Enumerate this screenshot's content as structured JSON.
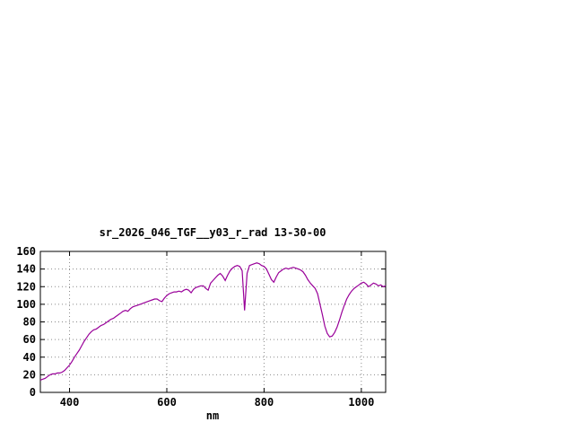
{
  "chart_data": {
    "type": "line",
    "title": "sr_2026_046_TGF__y03_r_rad 13-30-00",
    "xlabel": "nm",
    "ylabel": "",
    "xlim": [
      340,
      1050
    ],
    "ylim": [
      0,
      160
    ],
    "xticks": [
      400,
      600,
      800,
      1000
    ],
    "yticks": [
      0,
      20,
      40,
      60,
      80,
      100,
      120,
      140,
      160
    ],
    "grid": true,
    "legend": "none",
    "line_color": "#990099",
    "x": [
      340,
      345,
      350,
      355,
      360,
      365,
      370,
      375,
      380,
      385,
      390,
      395,
      400,
      405,
      410,
      415,
      420,
      425,
      430,
      435,
      440,
      445,
      450,
      455,
      460,
      465,
      470,
      475,
      480,
      485,
      490,
      495,
      500,
      505,
      510,
      515,
      520,
      525,
      530,
      535,
      540,
      545,
      550,
      555,
      560,
      565,
      570,
      575,
      580,
      585,
      590,
      595,
      600,
      605,
      610,
      615,
      620,
      625,
      630,
      635,
      640,
      645,
      650,
      655,
      660,
      665,
      670,
      675,
      680,
      685,
      690,
      695,
      700,
      705,
      710,
      715,
      720,
      725,
      730,
      735,
      740,
      745,
      750,
      755,
      760,
      765,
      770,
      775,
      780,
      785,
      790,
      795,
      800,
      805,
      810,
      815,
      820,
      825,
      830,
      835,
      840,
      845,
      850,
      855,
      860,
      865,
      870,
      875,
      880,
      885,
      890,
      895,
      900,
      905,
      910,
      915,
      920,
      925,
      930,
      935,
      940,
      945,
      950,
      955,
      960,
      965,
      970,
      975,
      980,
      985,
      990,
      995,
      1000,
      1005,
      1010,
      1015,
      1020,
      1025,
      1030,
      1035,
      1040,
      1045,
      1050
    ],
    "values": [
      14,
      15,
      16,
      18,
      20,
      21,
      21,
      22,
      22,
      23,
      25,
      28,
      31,
      35,
      40,
      44,
      48,
      53,
      58,
      62,
      66,
      69,
      71,
      72,
      74,
      76,
      77,
      79,
      81,
      83,
      84,
      86,
      88,
      90,
      92,
      93,
      92,
      95,
      97,
      98,
      99,
      100,
      101,
      102,
      103,
      104,
      105,
      106,
      106,
      104,
      103,
      107,
      110,
      112,
      113,
      114,
      114,
      115,
      114,
      116,
      117,
      116,
      113,
      117,
      119,
      120,
      121,
      121,
      118,
      116,
      124,
      127,
      130,
      133,
      135,
      132,
      127,
      133,
      138,
      141,
      143,
      144,
      143,
      138,
      93,
      135,
      144,
      145,
      146,
      147,
      146,
      144,
      143,
      140,
      134,
      128,
      125,
      131,
      136,
      138,
      140,
      141,
      140,
      141,
      142,
      141,
      140,
      139,
      137,
      133,
      128,
      124,
      121,
      118,
      112,
      100,
      88,
      75,
      67,
      63,
      64,
      68,
      74,
      82,
      91,
      99,
      106,
      111,
      115,
      118,
      120,
      122,
      124,
      125,
      123,
      120,
      122,
      124,
      123,
      121,
      122,
      120,
      121
    ]
  }
}
